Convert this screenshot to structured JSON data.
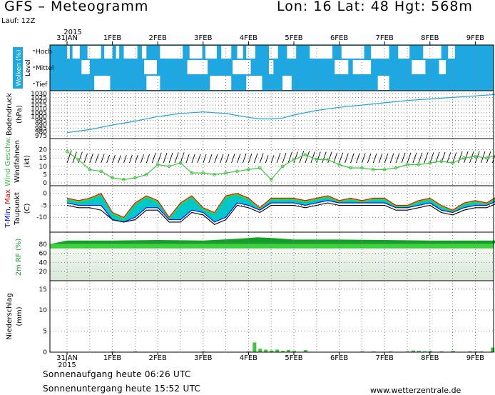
{
  "header": {
    "title": "GFS – Meteogramm",
    "coords": "Lon: 16 Lat: 48 Hgt: 568m",
    "run": "Lauf: 12Z"
  },
  "footer": {
    "sunrise": "Sonnenaufgang heute 06:26 UTC",
    "sunset": "Sonnenuntergang heute 15:52 UTC",
    "source": "www.wetterzentrale.de"
  },
  "colors": {
    "cloud": "#1ea7e1",
    "pressure": "#1ea7e1",
    "wind_speed": "#3cc83c",
    "t_max": "#ff0000",
    "t_min": "#0000ff",
    "dewpoint": "#000000",
    "temp_band": "#00c8c8",
    "temp_band_cold": "#0a8a8a",
    "temp_band_warm": "#3cd23c",
    "rh_dark": "#14a028",
    "rh_light": "#3cd23c",
    "precip": "#3cc83c"
  },
  "time_axis": {
    "year": "2015",
    "day_labels": [
      "31JAN",
      "1FEB",
      "2FEB",
      "3FEB",
      "4FEB",
      "5FEB",
      "6FEB",
      "7FEB",
      "8FEB",
      "9FEB"
    ]
  },
  "chart_data": [
    {
      "type": "heatmap",
      "panel": "clouds",
      "ylabel": "Wolken (%)",
      "levels_title": "Level",
      "levels": [
        "Hoch",
        "Mittel",
        "Tief"
      ],
      "time_range_days": [
        0,
        9.5
      ],
      "hoch": [
        [
          0,
          0.06
        ],
        [
          0.12,
          0.28
        ],
        [
          0.45,
          0.75
        ],
        [
          0.82,
          1.0
        ],
        [
          1.08,
          1.15
        ],
        [
          1.25,
          1.55
        ],
        [
          1.65,
          1.75
        ],
        [
          2.05,
          2.55
        ],
        [
          2.7,
          2.98
        ],
        [
          3.05,
          3.3
        ],
        [
          3.4,
          3.62
        ],
        [
          3.75,
          3.88
        ],
        [
          3.95,
          4.15
        ],
        [
          4.45,
          4.65
        ],
        [
          4.85,
          5.05
        ],
        [
          5.35,
          5.85
        ],
        [
          6.05,
          6.55
        ],
        [
          6.7,
          7.1
        ],
        [
          7.3,
          7.55
        ],
        [
          7.85,
          8.25
        ],
        [
          8.4,
          8.55
        ]
      ],
      "mittel": [
        [
          0.32,
          0.5
        ],
        [
          1.7,
          1.98
        ],
        [
          2.65,
          3.1
        ],
        [
          3.65,
          4.05
        ],
        [
          4.45,
          4.55
        ],
        [
          5.9,
          6.2
        ],
        [
          6.3,
          6.7
        ],
        [
          7.6,
          7.9
        ],
        [
          8.2,
          8.35
        ]
      ],
      "tief": [
        [
          0.6,
          0.95
        ],
        [
          1.75,
          2.05
        ],
        [
          3.15,
          3.62
        ],
        [
          3.95,
          4.3
        ],
        [
          4.75,
          4.95
        ],
        [
          6.85,
          7.1
        ]
      ]
    },
    {
      "type": "line",
      "panel": "pressure",
      "ylabel": "Bodendruck",
      "unit": "(hPa)",
      "ylim": [
        975,
        1030
      ],
      "yticks": [
        975,
        980,
        985,
        990,
        995,
        1000,
        1005,
        1010,
        1015,
        1020,
        1025,
        1030
      ],
      "x": [
        0,
        0.5,
        1.0,
        1.5,
        2.0,
        2.5,
        3.0,
        3.5,
        4.0,
        4.25,
        4.5,
        4.75,
        5.0,
        5.5,
        6.0,
        6.5,
        7.0,
        7.5,
        8.0,
        8.5,
        9.0,
        9.5
      ],
      "values": [
        979,
        983,
        989,
        994,
        1000,
        1004,
        1006,
        1004,
        999,
        997,
        997,
        998,
        1002,
        1008,
        1012,
        1015,
        1018,
        1021,
        1023,
        1025,
        1027,
        1029
      ]
    },
    {
      "type": "line",
      "panel": "wind",
      "ylabel": "Wind Geschw.",
      "ylabel2": "Windfahnen",
      "unit": "(kt)",
      "ylim": [
        0,
        25
      ],
      "yticks": [
        0,
        5,
        10,
        15,
        20
      ],
      "x": [
        0,
        0.25,
        0.5,
        0.75,
        1.0,
        1.25,
        1.5,
        1.75,
        2.0,
        2.25,
        2.5,
        2.75,
        3.0,
        3.25,
        3.5,
        3.75,
        4.0,
        4.25,
        4.5,
        4.75,
        5.0,
        5.25,
        5.5,
        5.75,
        6.0,
        6.25,
        6.5,
        6.75,
        7.0,
        7.25,
        7.5,
        7.75,
        8.0,
        8.25,
        8.5,
        8.75,
        9.0,
        9.25,
        9.5
      ],
      "values": [
        19,
        14,
        8,
        7,
        3,
        2,
        3,
        5,
        11,
        10,
        12,
        6,
        6,
        5,
        6,
        7,
        8,
        9,
        2,
        10,
        14,
        17,
        14,
        14,
        11,
        9,
        9,
        8,
        8,
        9,
        11,
        11,
        12,
        13,
        12,
        15,
        16,
        15,
        17
      ]
    },
    {
      "type": "area",
      "panel": "temperature",
      "ylabel": "T-Min, Max",
      "ylabel2": "Taupunkt",
      "unit": "(C)",
      "ylim": [
        -15,
        2
      ],
      "yticks": [
        0,
        -5,
        -10
      ],
      "x": [
        0,
        0.25,
        0.5,
        0.75,
        1.0,
        1.25,
        1.5,
        1.75,
        2.0,
        2.25,
        2.5,
        2.75,
        3.0,
        3.25,
        3.5,
        3.75,
        4.0,
        4.25,
        4.5,
        4.75,
        5.0,
        5.25,
        5.5,
        5.75,
        6.0,
        6.25,
        6.5,
        6.75,
        7.0,
        7.25,
        7.5,
        7.75,
        8.0,
        8.25,
        8.5,
        8.75,
        9.0,
        9.25,
        9.5
      ],
      "series": [
        {
          "name": "T-Max",
          "values": [
            -2,
            -3,
            -2,
            0,
            -8,
            -10,
            -4,
            -1,
            -3,
            -10,
            -4,
            -1,
            -6,
            -8,
            -1,
            0,
            -2,
            -6,
            -2,
            -2,
            -2,
            -3,
            -2,
            -1,
            -3,
            -2,
            -3,
            -2,
            -2,
            -5,
            -5,
            -3,
            -2,
            -5,
            -7,
            -4,
            -3,
            -4,
            -1
          ]
        },
        {
          "name": "T-Min",
          "values": [
            -4,
            -5,
            -5,
            -5,
            -11,
            -12,
            -10,
            -6,
            -6,
            -11,
            -11,
            -7,
            -8,
            -12,
            -10,
            -4,
            -5,
            -7,
            -4,
            -4,
            -4,
            -5,
            -4,
            -3,
            -4,
            -4,
            -4,
            -4,
            -4,
            -6,
            -6,
            -5,
            -4,
            -7,
            -8,
            -6,
            -5,
            -5,
            -3
          ]
        },
        {
          "name": "Taupunkt",
          "values": [
            -5,
            -6,
            -6,
            -7,
            -11,
            -12,
            -11,
            -7,
            -7,
            -12,
            -12,
            -8,
            -9,
            -13,
            -11,
            -5,
            -6,
            -8,
            -5,
            -5,
            -5,
            -6,
            -5,
            -4,
            -5,
            -5,
            -5,
            -5,
            -5,
            -7,
            -7,
            -6,
            -5,
            -8,
            -9,
            -7,
            -6,
            -6,
            -4
          ]
        }
      ]
    },
    {
      "type": "area",
      "panel": "humidity",
      "ylabel": "2m RF (%)",
      "ylim": [
        0,
        100
      ],
      "yticks": [
        20,
        40,
        60,
        80
      ],
      "x": [
        0,
        1,
        2,
        3,
        3.8,
        4.2,
        4.6,
        5,
        6,
        7,
        8,
        9,
        9.5
      ],
      "values": [
        88,
        88,
        89,
        88,
        92,
        95,
        93,
        90,
        90,
        89,
        88,
        88,
        88
      ]
    },
    {
      "type": "bar",
      "panel": "precipitation",
      "ylabel": "Niederschlag",
      "unit": "(mm)",
      "ylim": [
        0,
        17
      ],
      "yticks": [
        0,
        5,
        10,
        15
      ],
      "x": [
        1.0,
        1.5,
        3.0,
        4.0,
        4.125,
        4.25,
        4.375,
        4.5,
        4.625,
        4.75,
        4.875,
        5.0,
        5.25,
        6.5,
        6.75,
        7.125,
        7.5,
        7.625,
        7.75,
        7.875,
        8.0,
        8.25,
        8.5,
        8.875,
        9.0,
        9.125,
        9.375
      ],
      "values": [
        0.1,
        0.1,
        0.1,
        0.2,
        2.3,
        0.8,
        0.6,
        0.4,
        0.6,
        0.3,
        0.5,
        0.3,
        0.5,
        0.1,
        0.1,
        0.1,
        0.2,
        0.4,
        0.3,
        0.2,
        0.3,
        0.1,
        0.3,
        0.2,
        0.1,
        0.1,
        1.1
      ]
    }
  ]
}
